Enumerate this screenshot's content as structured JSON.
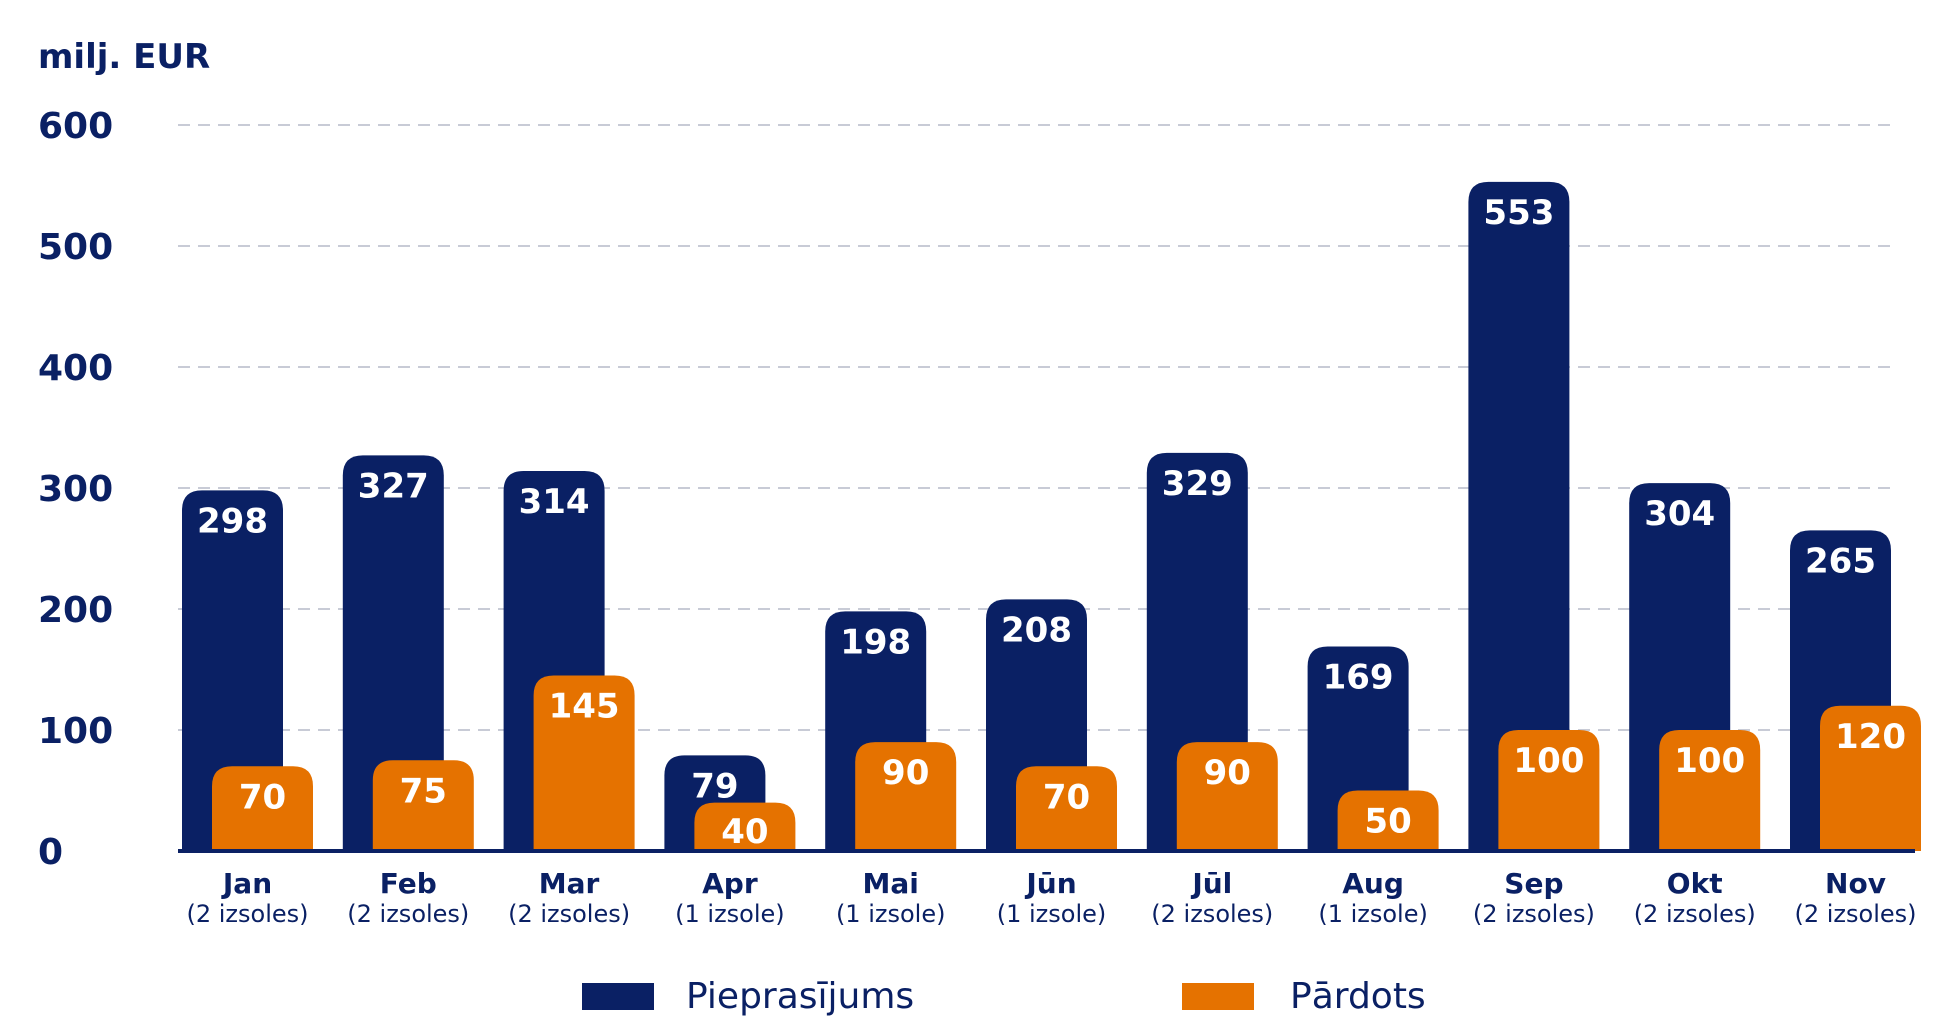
{
  "chart_data": {
    "type": "bar",
    "unit_label": "milj. EUR",
    "ylim": [
      0,
      600
    ],
    "yticks": [
      "0",
      "100",
      "200",
      "300",
      "400",
      "500",
      "600"
    ],
    "categories": [
      "Jan",
      "Feb",
      "Mar",
      "Apr",
      "Mai",
      "Jūn",
      "Jūl",
      "Aug",
      "Sep",
      "Okt",
      "Nov"
    ],
    "subcategories": [
      "(2 izsoles)",
      "(2 izsoles)",
      "(2 izsoles)",
      "(1 izsole)",
      "(1 izsole)",
      "(1 izsole)",
      "(2 izsoles)",
      "(1 izsole)",
      "(2 izsoles)",
      "(2 izsoles)",
      "(2 izsoles)"
    ],
    "series": [
      {
        "name": "Pieprasījums",
        "color": "#0a2064",
        "values": [
          298,
          327,
          314,
          79,
          198,
          208,
          329,
          169,
          553,
          304,
          265
        ]
      },
      {
        "name": "Pārdots",
        "color": "#e57200",
        "values": [
          70,
          75,
          145,
          40,
          90,
          70,
          90,
          50,
          100,
          100,
          120
        ]
      }
    ],
    "grid": true,
    "legend": "bottom"
  },
  "colors": {
    "text": "#0a2064",
    "grid": "#c8cbd6",
    "axis": "#0a2064"
  }
}
